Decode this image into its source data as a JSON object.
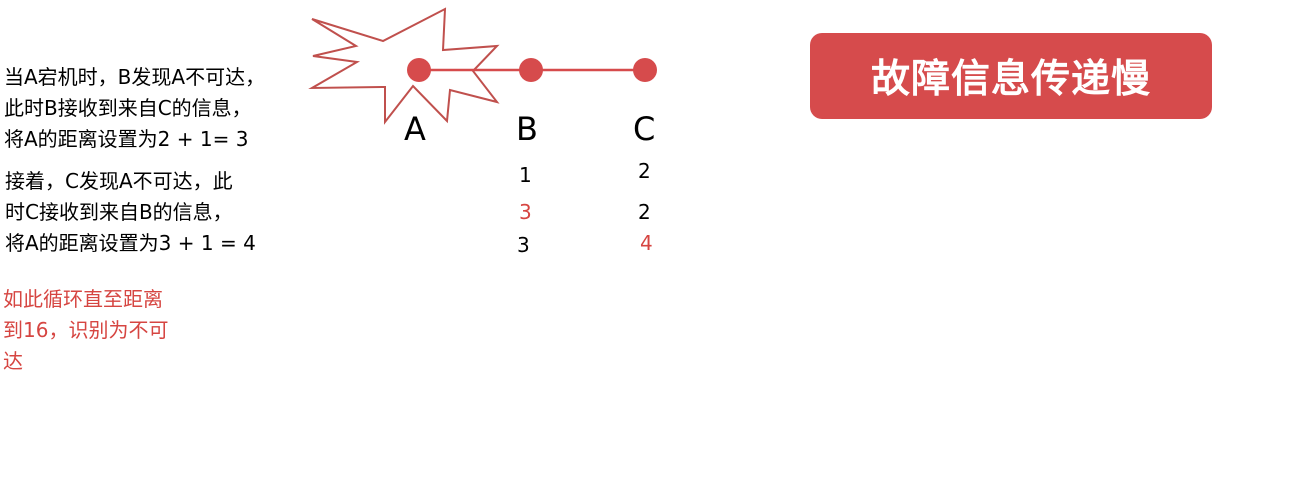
{
  "title": "故障信息传递慢",
  "paragraphs": [
    {
      "lines": [
        "当A宕机时，B发现A不可达，",
        "此时B接收到来自C的信息，",
        "将A的距离设置为2 + 1= 3"
      ]
    },
    {
      "lines": [
        "接着，C发现A不可达，此",
        "时C接收到来自B的信息，",
        "将A的距离设置为3 + 1 = 4"
      ]
    },
    {
      "lines": [
        "如此循环直至距离",
        "到16，识别为不可",
        "达"
      ]
    }
  ],
  "nodes": {
    "a": "A",
    "b": "B",
    "c": "C"
  },
  "table": {
    "row1": {
      "b": "1",
      "c": "2"
    },
    "row2": {
      "b": "3",
      "c": "2"
    },
    "row3": {
      "b": "3",
      "c": "4"
    }
  },
  "colors": {
    "accent": "#d64b4c",
    "highlight_text": "#d64541",
    "node": "#d64b4c",
    "burst_stroke": "#c0504d"
  }
}
